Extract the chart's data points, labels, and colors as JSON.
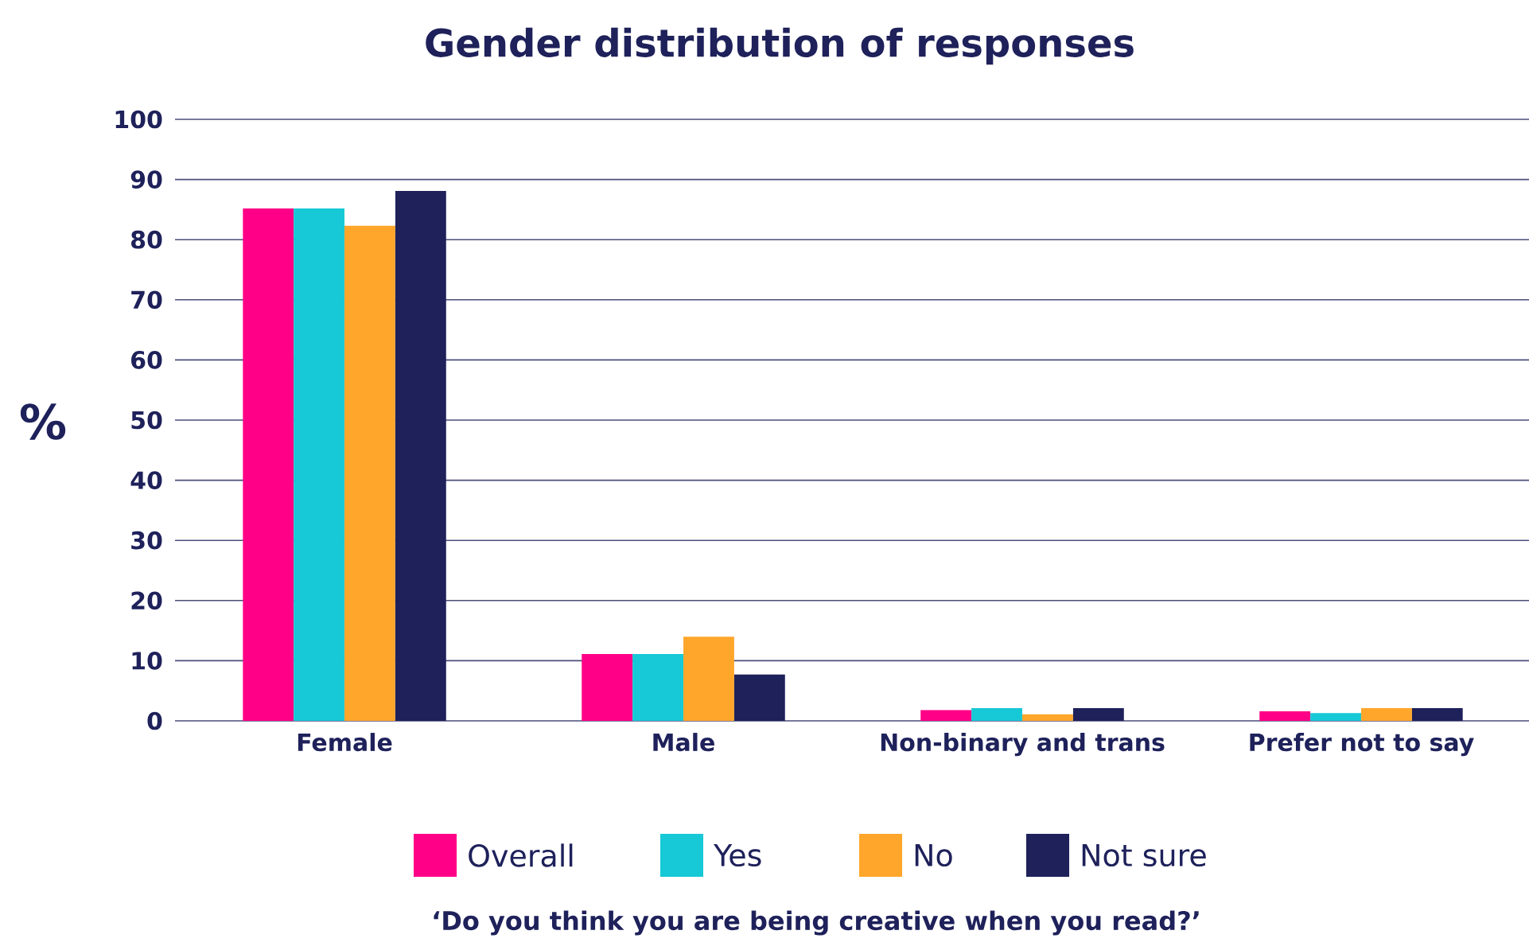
{
  "chart_data": {
    "type": "bar",
    "title": "Gender distribution of responses",
    "ylabel": "%",
    "annotations": [
      "‘Do you think you are being creative when you read?’"
    ],
    "categories": [
      "Female",
      "Male",
      "Non-binary and trans",
      "Prefer not to say"
    ],
    "series": [
      {
        "name": "Overall",
        "color": "#ff0087",
        "values": [
          85.2,
          11.1,
          1.8,
          1.6
        ]
      },
      {
        "name": "Yes",
        "color": "#17c8d6",
        "values": [
          85.2,
          11.1,
          2.1,
          1.3
        ]
      },
      {
        "name": "No",
        "color": "#ffa62b",
        "values": [
          82.3,
          14.0,
          1.1,
          2.1
        ]
      },
      {
        "name": "Not sure",
        "color": "#1e215a",
        "values": [
          88.1,
          7.7,
          2.1,
          2.1
        ]
      }
    ],
    "ylim": [
      0,
      100
    ],
    "yticks": [
      0,
      10,
      20,
      30,
      40,
      50,
      60,
      70,
      80,
      90,
      100
    ],
    "grid": "y",
    "legend": "bottom"
  }
}
